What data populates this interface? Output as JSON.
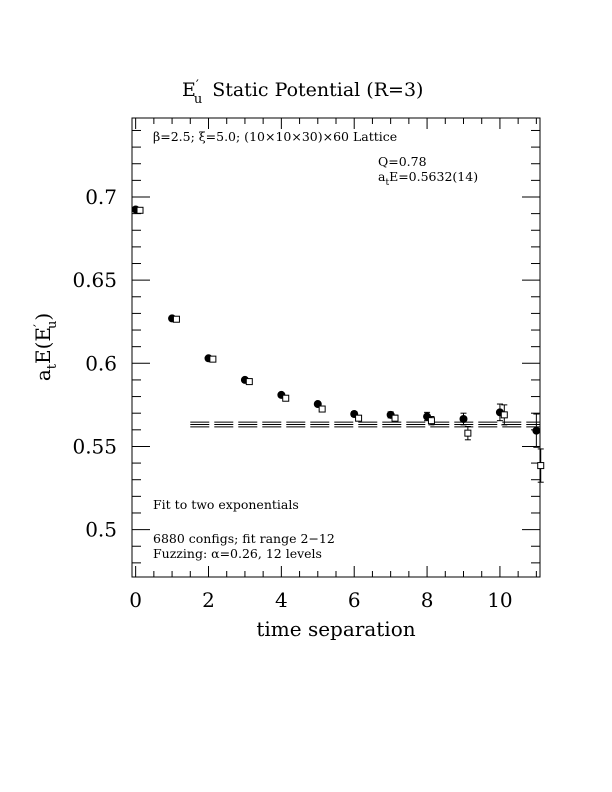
{
  "chart_data": {
    "type": "scatter",
    "title": "Static Potential (R=3)",
    "title_symbol": {
      "base": "E",
      "prime": "′",
      "sub": "u"
    },
    "xlabel": "time separation",
    "ylabel": {
      "base": "a",
      "sub1": "t",
      "mid": "E(E",
      "prime": "′",
      "sub2": "u",
      "end": ")"
    },
    "xlim": [
      -0.1,
      11.1
    ],
    "ylim": [
      0.4715,
      0.7475
    ],
    "x_ticks": [
      "0",
      "2",
      "4",
      "6",
      "8",
      "10"
    ],
    "x_tick_values": [
      0,
      2,
      4,
      6,
      8,
      10
    ],
    "y_ticks": [
      "0.5",
      "0.55",
      "0.6",
      "0.65",
      "0.7"
    ],
    "y_tick_values": [
      0.5,
      0.55,
      0.6,
      0.65,
      0.7
    ],
    "annotations": {
      "lattice": "β=2.5; ξ=5.0; (10×10×30)×60 Lattice",
      "q": "Q=0.78",
      "fit_energy": {
        "base": "a",
        "sub": "t",
        "rest": "E=0.5632(14)"
      },
      "fit_type": "Fit to two exponentials",
      "configs": "6880 configs; fit range 2−12",
      "fuzzing": "Fuzzing: α=0.26, 12 levels"
    },
    "fit": {
      "value": 0.5632,
      "error": 0.0014,
      "x_range": [
        1.5,
        11.1
      ]
    },
    "series": [
      {
        "marker": "filled-circle",
        "points": [
          {
            "x": 0,
            "y": 0.6925,
            "err": 0.0006
          },
          {
            "x": 1,
            "y": 0.627,
            "err": 0.0007
          },
          {
            "x": 2,
            "y": 0.603,
            "err": 0.0008
          },
          {
            "x": 3,
            "y": 0.59,
            "err": 0.0009
          },
          {
            "x": 4,
            "y": 0.581,
            "err": 0.001
          },
          {
            "x": 5,
            "y": 0.5755,
            "err": 0.0012
          },
          {
            "x": 6,
            "y": 0.5695,
            "err": 0.0015
          },
          {
            "x": 7,
            "y": 0.569,
            "err": 0.0018
          },
          {
            "x": 8,
            "y": 0.568,
            "err": 0.0025
          },
          {
            "x": 9,
            "y": 0.5665,
            "err": 0.0035
          },
          {
            "x": 10,
            "y": 0.5705,
            "err": 0.005
          },
          {
            "x": 11,
            "y": 0.5595,
            "err": 0.01
          }
        ]
      },
      {
        "marker": "open-square",
        "points": [
          {
            "x": 0.12,
            "y": 0.692,
            "err": 0.0006
          },
          {
            "x": 1.12,
            "y": 0.6265,
            "err": 0.0007
          },
          {
            "x": 2.12,
            "y": 0.6025,
            "err": 0.0008
          },
          {
            "x": 3.12,
            "y": 0.589,
            "err": 0.0009
          },
          {
            "x": 4.12,
            "y": 0.579,
            "err": 0.001
          },
          {
            "x": 5.12,
            "y": 0.5725,
            "err": 0.0012
          },
          {
            "x": 6.12,
            "y": 0.567,
            "err": 0.0015
          },
          {
            "x": 7.12,
            "y": 0.567,
            "err": 0.0018
          },
          {
            "x": 8.12,
            "y": 0.5655,
            "err": 0.0025
          },
          {
            "x": 9.12,
            "y": 0.558,
            "err": 0.004
          },
          {
            "x": 10.12,
            "y": 0.569,
            "err": 0.006
          },
          {
            "x": 11.12,
            "y": 0.5385,
            "err": 0.01
          }
        ]
      }
    ]
  }
}
